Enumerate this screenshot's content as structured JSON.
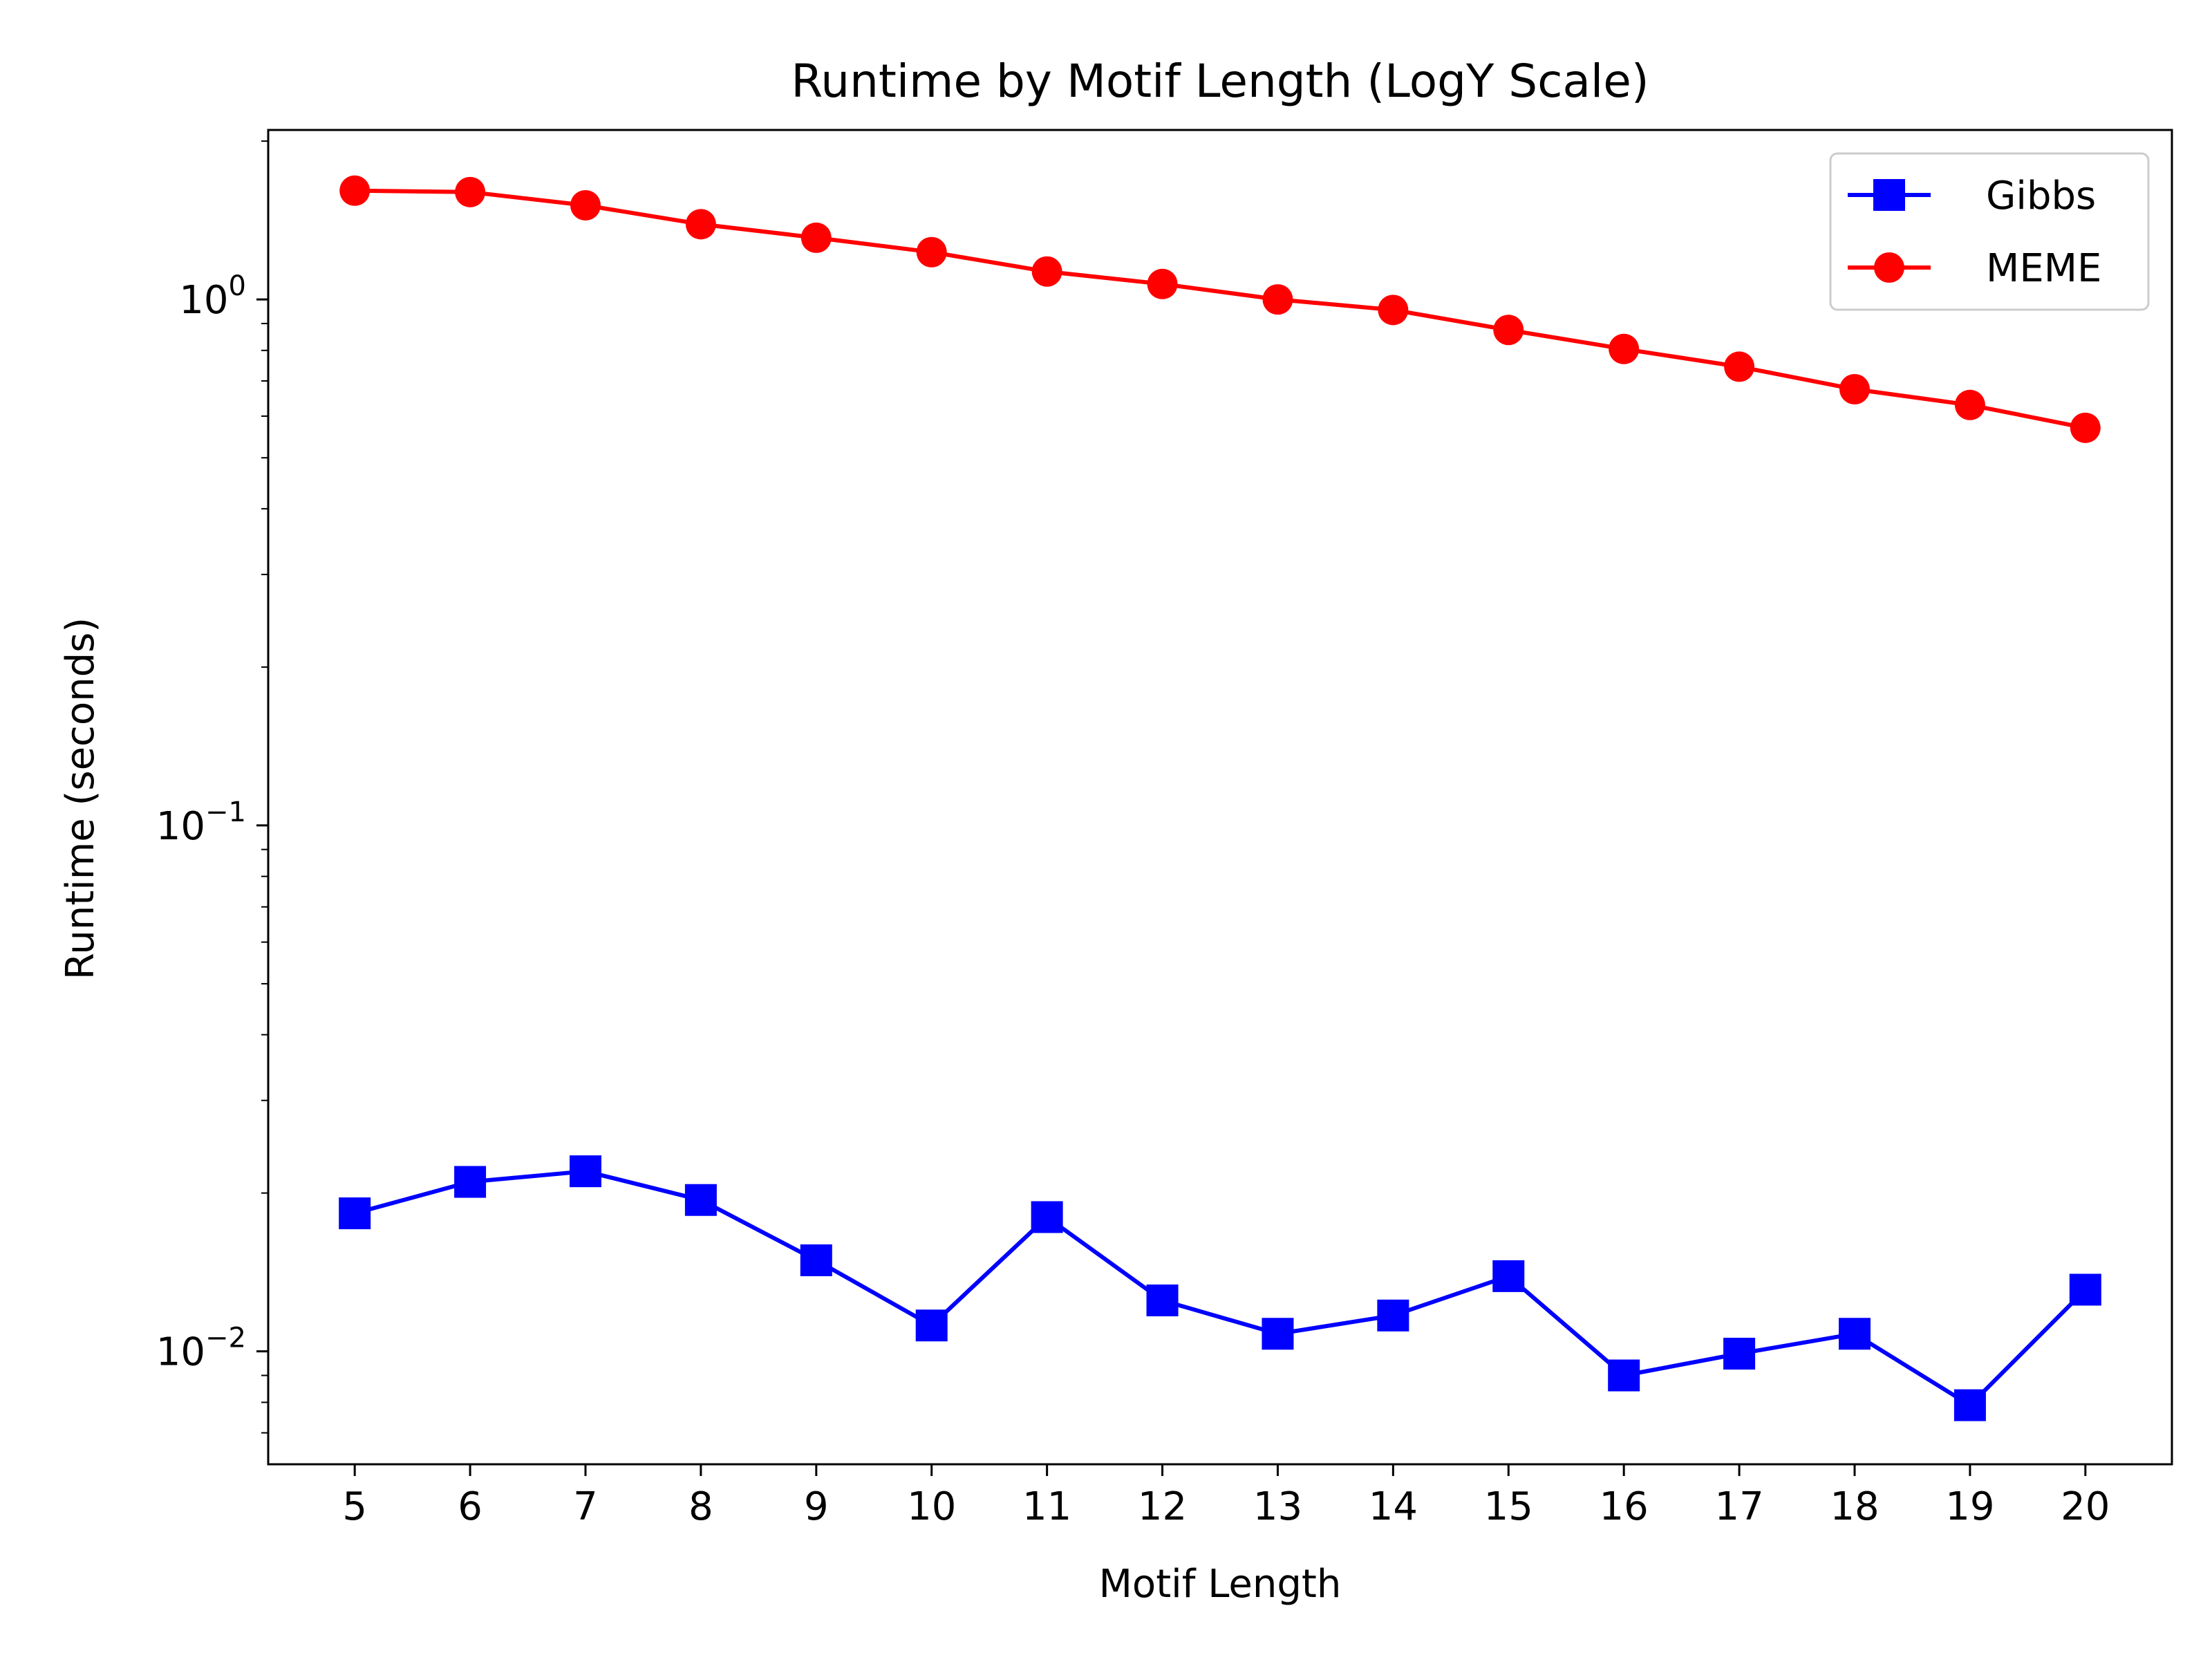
{
  "chart_data": {
    "type": "line",
    "title": "Runtime by Motif Length (LogY Scale)",
    "xlabel": "Motif Length",
    "ylabel": "Runtime (seconds)",
    "x": [
      5,
      6,
      7,
      8,
      9,
      10,
      11,
      12,
      13,
      14,
      15,
      16,
      17,
      18,
      19,
      20
    ],
    "xlim": [
      4.25,
      20.75
    ],
    "ylim": [
      0.0061,
      2.1
    ],
    "yscale": "log",
    "yticks": [
      {
        "base": "10",
        "exp": "−2",
        "value": 0.01
      },
      {
        "base": "10",
        "exp": "−1",
        "value": 0.1
      },
      {
        "base": "10",
        "exp": "0",
        "value": 1
      }
    ],
    "grid": false,
    "legend_position": "top-right",
    "series": [
      {
        "name": "Gibbs",
        "color": "#0000ff",
        "marker": "square",
        "values": [
          0.0183,
          0.021,
          0.022,
          0.0194,
          0.0149,
          0.0112,
          0.018,
          0.0125,
          0.0108,
          0.0117,
          0.0139,
          0.009,
          0.0099,
          0.0108,
          0.0079,
          0.0131
        ]
      },
      {
        "name": "MEME",
        "color": "#ff0000",
        "marker": "circle",
        "values": [
          1.61,
          1.6,
          1.51,
          1.39,
          1.31,
          1.23,
          1.13,
          1.07,
          1.0,
          0.955,
          0.875,
          0.805,
          0.745,
          0.675,
          0.63,
          0.57
        ]
      }
    ]
  }
}
